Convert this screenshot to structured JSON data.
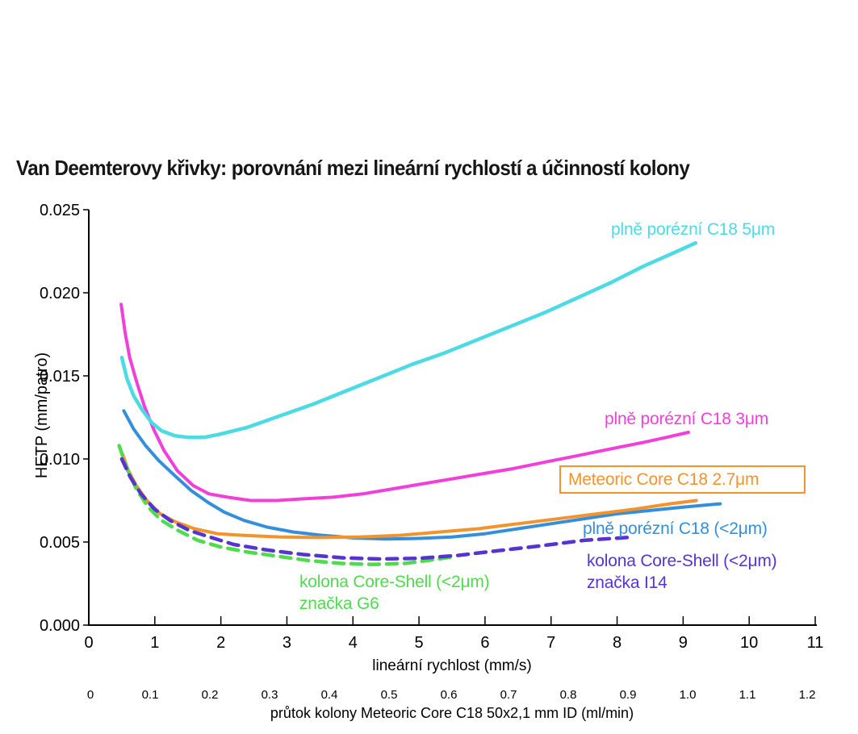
{
  "page": {
    "background": "#ffffff"
  },
  "chart_data": {
    "type": "line",
    "title": "Van Deemterovy křivky: porovnání mezi lineární rychlostí a účinností kolony",
    "xlabel": "lineární rychlost (mm/s)",
    "x2label": "průtok kolony Meteoric Core C18 50x2,1 mm ID (ml/min)",
    "ylabel": "HETP (mm/patro)",
    "grid": false,
    "legend_position": "inline-annotations-near-curve-ends",
    "axes": {
      "x": {
        "min": 0,
        "max": 11,
        "px": [
          110,
          1010
        ],
        "ticks": [
          "0",
          "1",
          "2",
          "3",
          "4",
          "5",
          "6",
          "7",
          "8",
          "9",
          "10",
          "11"
        ]
      },
      "x2": {
        "min": 0,
        "max": 1.2,
        "px": [
          112,
          1000
        ],
        "ticks": [
          "0",
          "0.1",
          "0.2",
          "0.3",
          "0.4",
          "0.5",
          "0.6",
          "0.7",
          "0.8",
          "0.9",
          "1.0",
          "1.1",
          "1.2"
        ]
      },
      "y": {
        "min": 0,
        "max": 0.025,
        "px": [
          775,
          260
        ],
        "ticks": [
          "0.000",
          "0.005",
          "0.010",
          "0.015",
          "0.020",
          "0.025"
        ]
      }
    },
    "series": [
      {
        "id": "fully-porous-sub2um",
        "name": "plně porézní C18 (<2μm)",
        "label_lines": [
          "plně porézní C18 (<2μm)"
        ],
        "color": "#338FDC",
        "dashed": false,
        "width": 4,
        "points": [
          [
            0.53,
            0.0129
          ],
          [
            0.68,
            0.0118
          ],
          [
            0.86,
            0.0108
          ],
          [
            1.06,
            0.0099
          ],
          [
            1.3,
            0.009
          ],
          [
            1.55,
            0.0081
          ],
          [
            1.8,
            0.0074
          ],
          [
            2.05,
            0.0068
          ],
          [
            2.35,
            0.0063
          ],
          [
            2.7,
            0.0059
          ],
          [
            3.1,
            0.0056
          ],
          [
            3.55,
            0.0054
          ],
          [
            4.0,
            0.00525
          ],
          [
            4.5,
            0.00518
          ],
          [
            5.0,
            0.00522
          ],
          [
            5.5,
            0.0053
          ],
          [
            6.0,
            0.0055
          ],
          [
            6.5,
            0.0058
          ],
          [
            7.0,
            0.0061
          ],
          [
            7.5,
            0.0064
          ],
          [
            8.0,
            0.0067
          ],
          [
            8.5,
            0.0069
          ],
          [
            9.0,
            0.0071
          ],
          [
            9.56,
            0.0073
          ]
        ]
      },
      {
        "id": "meteoric-core-27um",
        "name": "Meteoric Core C18 2.7μm",
        "label_lines": [
          "Meteoric Core C18 2.7μm"
        ],
        "color": "#F2932C",
        "dashed": false,
        "width": 4,
        "boxed_label": true,
        "points": [
          [
            0.51,
            0.0103
          ],
          [
            0.6,
            0.0093
          ],
          [
            0.72,
            0.0084
          ],
          [
            0.88,
            0.0075
          ],
          [
            1.08,
            0.0067
          ],
          [
            1.32,
            0.0062
          ],
          [
            1.6,
            0.0058
          ],
          [
            1.95,
            0.0055
          ],
          [
            2.35,
            0.0054
          ],
          [
            2.9,
            0.0053
          ],
          [
            3.5,
            0.00527
          ],
          [
            4.1,
            0.0053
          ],
          [
            4.7,
            0.0054
          ],
          [
            5.3,
            0.0056
          ],
          [
            5.9,
            0.0058
          ],
          [
            6.5,
            0.0061
          ],
          [
            7.1,
            0.0064
          ],
          [
            7.7,
            0.0067
          ],
          [
            8.3,
            0.007
          ],
          [
            8.8,
            0.0073
          ],
          [
            9.2,
            0.0075
          ]
        ]
      },
      {
        "id": "fully-porous-3um",
        "name": "plně porézní C18 3μm",
        "label_lines": [
          "plně porézní C18 3μm"
        ],
        "color": "#F13FD9",
        "dashed": false,
        "width": 4,
        "points": [
          [
            0.49,
            0.0193
          ],
          [
            0.55,
            0.0176
          ],
          [
            0.62,
            0.0161
          ],
          [
            0.72,
            0.0147
          ],
          [
            0.84,
            0.0132
          ],
          [
            0.98,
            0.0118
          ],
          [
            1.14,
            0.0105
          ],
          [
            1.34,
            0.0093
          ],
          [
            1.58,
            0.0084
          ],
          [
            1.82,
            0.0079
          ],
          [
            2.1,
            0.0077
          ],
          [
            2.45,
            0.0075
          ],
          [
            2.85,
            0.0075
          ],
          [
            3.25,
            0.0076
          ],
          [
            3.7,
            0.0077
          ],
          [
            4.15,
            0.0079
          ],
          [
            4.6,
            0.0082
          ],
          [
            5.05,
            0.0085
          ],
          [
            5.5,
            0.0088
          ],
          [
            5.95,
            0.0091
          ],
          [
            6.4,
            0.0094
          ],
          [
            6.9,
            0.0098
          ],
          [
            7.4,
            0.0102
          ],
          [
            7.9,
            0.0106
          ],
          [
            8.4,
            0.011
          ],
          [
            8.75,
            0.0113
          ],
          [
            9.08,
            0.0116
          ]
        ]
      },
      {
        "id": "fully-porous-5um",
        "name": "plně porézní C18 5μm",
        "label_lines": [
          "plně porézní C18 5μm"
        ],
        "color": "#4CDBE4",
        "dashed": false,
        "width": 4.5,
        "points": [
          [
            0.5,
            0.0161
          ],
          [
            0.58,
            0.0148
          ],
          [
            0.68,
            0.0138
          ],
          [
            0.8,
            0.013
          ],
          [
            0.95,
            0.0122
          ],
          [
            1.1,
            0.0117
          ],
          [
            1.3,
            0.0114
          ],
          [
            1.5,
            0.0113
          ],
          [
            1.75,
            0.0113
          ],
          [
            2.0,
            0.0115
          ],
          [
            2.4,
            0.0119
          ],
          [
            2.9,
            0.0126
          ],
          [
            3.4,
            0.0133
          ],
          [
            3.9,
            0.0141
          ],
          [
            4.4,
            0.0149
          ],
          [
            4.9,
            0.0157
          ],
          [
            5.4,
            0.0164
          ],
          [
            5.9,
            0.0172
          ],
          [
            6.4,
            0.018
          ],
          [
            6.9,
            0.0188
          ],
          [
            7.4,
            0.0197
          ],
          [
            7.9,
            0.0206
          ],
          [
            8.4,
            0.0216
          ],
          [
            8.8,
            0.0223
          ],
          [
            9.19,
            0.023
          ]
        ]
      },
      {
        "id": "core-shell-g6",
        "name": "kolona Core-Shell (<2μm) značka G6",
        "label_lines": [
          "kolona Core-Shell (<2μm)",
          "značka G6"
        ],
        "color": "#4EDB4E",
        "dashed": true,
        "width": 4.5,
        "points": [
          [
            0.46,
            0.0108
          ],
          [
            0.58,
            0.0094
          ],
          [
            0.72,
            0.0082
          ],
          [
            0.9,
            0.0071
          ],
          [
            1.1,
            0.0063
          ],
          [
            1.35,
            0.0057
          ],
          [
            1.65,
            0.0051
          ],
          [
            2.0,
            0.0047
          ],
          [
            2.4,
            0.0044
          ],
          [
            2.85,
            0.00415
          ],
          [
            3.3,
            0.0039
          ],
          [
            3.8,
            0.00372
          ],
          [
            4.3,
            0.00365
          ],
          [
            4.8,
            0.00372
          ],
          [
            5.15,
            0.0039
          ],
          [
            5.5,
            0.0041
          ]
        ]
      },
      {
        "id": "core-shell-i14",
        "name": "kolona Core-Shell (<2μm) značka I14",
        "label_lines": [
          "kolona Core-Shell (<2μm)",
          "značka I14"
        ],
        "color": "#5634D1",
        "dashed": true,
        "width": 4.5,
        "points": [
          [
            0.5,
            0.01
          ],
          [
            0.63,
            0.0089
          ],
          [
            0.79,
            0.0079
          ],
          [
            0.99,
            0.007
          ],
          [
            1.23,
            0.0063
          ],
          [
            1.52,
            0.0057
          ],
          [
            1.83,
            0.0053
          ],
          [
            2.2,
            0.00485
          ],
          [
            2.7,
            0.00452
          ],
          [
            3.25,
            0.00425
          ],
          [
            3.85,
            0.00405
          ],
          [
            4.4,
            0.00398
          ],
          [
            5.0,
            0.00402
          ],
          [
            5.6,
            0.0042
          ],
          [
            6.2,
            0.00448
          ],
          [
            6.8,
            0.00475
          ],
          [
            7.5,
            0.0051
          ],
          [
            8.25,
            0.0053
          ]
        ]
      }
    ]
  }
}
